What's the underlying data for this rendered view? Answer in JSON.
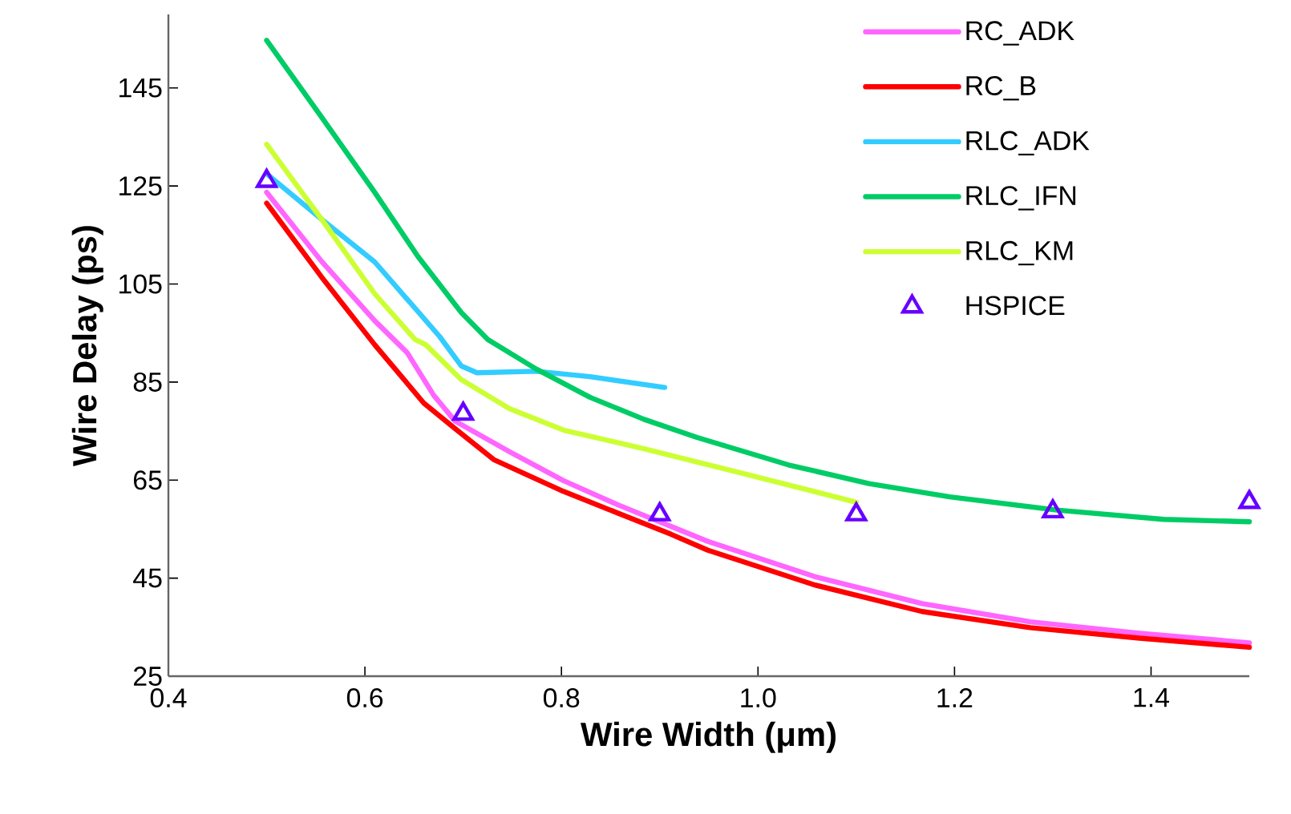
{
  "chart_data": {
    "type": "line",
    "xlabel": "Wire Width (μm)",
    "ylabel": "Wire Delay (ps)",
    "xlim": [
      0.4,
      1.5
    ],
    "ylim": [
      25,
      160
    ],
    "xticks": [
      {
        "value": 0.4,
        "label": "0.4"
      },
      {
        "value": 0.6,
        "label": "0.6"
      },
      {
        "value": 0.8,
        "label": "0.8"
      },
      {
        "value": 1.0,
        "label": "1.0"
      },
      {
        "value": 1.2,
        "label": "1.2"
      },
      {
        "value": 1.4,
        "label": "1.4"
      }
    ],
    "yticks": [
      25,
      45,
      65,
      85,
      105,
      125,
      145
    ],
    "legend": "top right",
    "line_style": "solid",
    "series": [
      {
        "name": "RC_ADK",
        "color": "#ff66ff",
        "marker": "none",
        "x": [
          0.5,
          0.556,
          0.61,
          0.643,
          0.67,
          0.692,
          0.747,
          0.802,
          0.857,
          0.911,
          0.949,
          1.058,
          1.167,
          1.277,
          1.386,
          1.5
        ],
        "values": [
          123.7,
          109.6,
          97.5,
          91,
          82.3,
          77,
          70.8,
          64.9,
          60,
          55.6,
          52.5,
          45.3,
          39.8,
          36.1,
          33.8,
          31.8
        ]
      },
      {
        "name": "RC_B",
        "color": "#ff0000",
        "marker": "none",
        "x": [
          0.5,
          0.556,
          0.61,
          0.66,
          0.69,
          0.731,
          0.802,
          0.857,
          0.911,
          0.949,
          1.058,
          1.167,
          1.277,
          1.386,
          1.5
        ],
        "values": [
          121.5,
          106.4,
          92.6,
          80.7,
          75.8,
          69.2,
          62.7,
          58.3,
          54,
          50.7,
          43.6,
          38.2,
          34.9,
          32.8,
          30.9
        ]
      },
      {
        "name": "RLC_ADK",
        "color": "#33ccff",
        "marker": "none",
        "x": [
          0.5,
          0.556,
          0.61,
          0.676,
          0.698,
          0.714,
          0.774,
          0.829,
          0.905
        ],
        "values": [
          127.5,
          118.2,
          109.5,
          94.3,
          88.3,
          86.9,
          87.2,
          86.1,
          83.9
        ]
      },
      {
        "name": "RLC_IFN",
        "color": "#00cc66",
        "marker": "none",
        "x": [
          0.5,
          0.556,
          0.61,
          0.654,
          0.698,
          0.725,
          0.774,
          0.829,
          0.884,
          0.938,
          1.031,
          1.113,
          1.195,
          1.304,
          1.413,
          1.5
        ],
        "values": [
          154.7,
          139,
          123.7,
          110.6,
          99.2,
          93.7,
          87.7,
          81.9,
          77.4,
          73.7,
          68.1,
          64.3,
          61.6,
          58.9,
          57,
          56.5
        ]
      },
      {
        "name": "RLC_KM",
        "color": "#ccff33",
        "marker": "none",
        "x": [
          0.5,
          0.556,
          0.61,
          0.651,
          0.662,
          0.698,
          0.747,
          0.802,
          0.884,
          0.982,
          1.1
        ],
        "values": [
          133.5,
          118.2,
          103,
          93.7,
          92.6,
          85.5,
          79.6,
          75.2,
          71.4,
          66.5,
          60.5
        ]
      },
      {
        "name": "HSPICE",
        "type": "scatter",
        "color": "#6600ff",
        "marker": "triangle",
        "x": [
          0.5,
          0.7,
          0.9,
          1.1,
          1.3,
          1.5
        ],
        "values": [
          126,
          78.5,
          58,
          58,
          58.6,
          60.5
        ]
      }
    ]
  }
}
